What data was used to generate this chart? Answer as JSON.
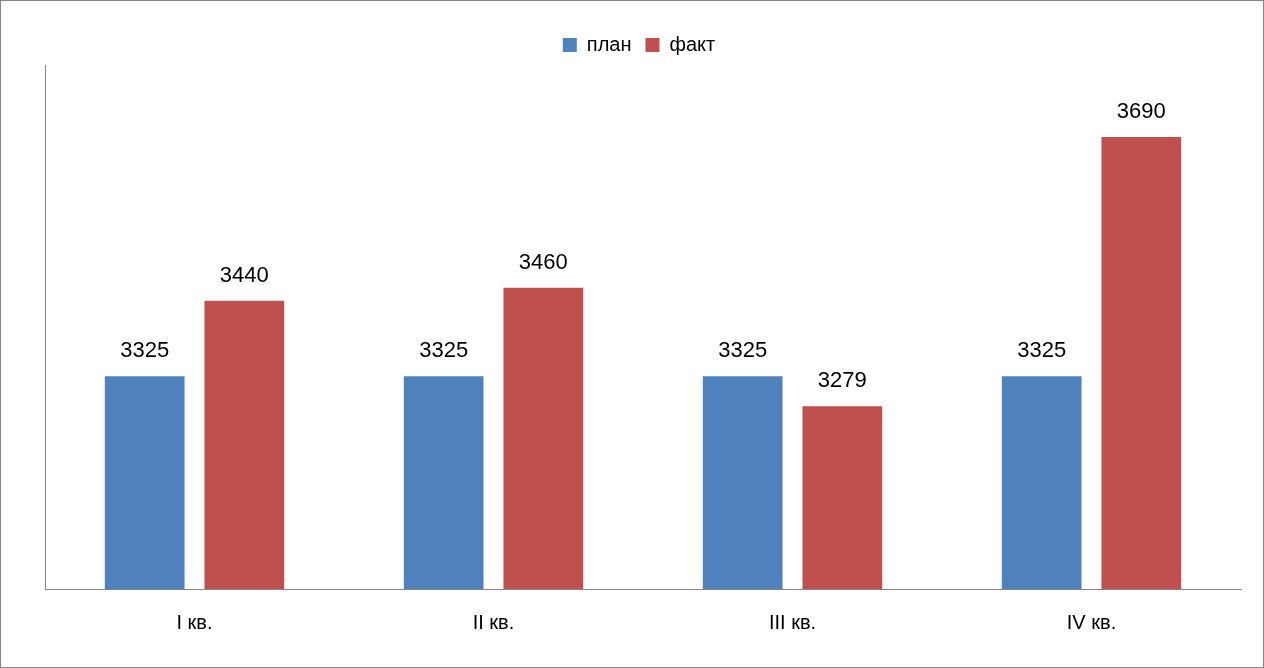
{
  "chart_data": {
    "type": "bar",
    "categories": [
      "I кв.",
      "II кв.",
      "III кв.",
      "IV кв."
    ],
    "series": [
      {
        "name": "план",
        "color": "#4f81bd",
        "values": [
          3325,
          3325,
          3325,
          3325
        ]
      },
      {
        "name": "факт",
        "color": "#c0504d",
        "values": [
          3440,
          3460,
          3279,
          3690
        ]
      }
    ],
    "ylim": [
      3000,
      3800
    ],
    "tick_labels": "x",
    "data_labels": true,
    "grid": false,
    "legend": "top"
  }
}
